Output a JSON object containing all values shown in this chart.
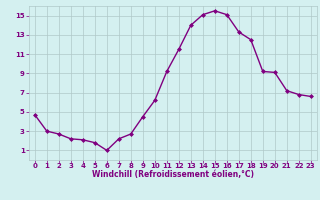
{
  "x": [
    0,
    1,
    2,
    3,
    4,
    5,
    6,
    7,
    8,
    9,
    10,
    11,
    12,
    13,
    14,
    15,
    16,
    17,
    18,
    19,
    20,
    21,
    22,
    23
  ],
  "y": [
    4.7,
    3.0,
    2.7,
    2.2,
    2.1,
    1.8,
    1.0,
    2.2,
    2.7,
    4.5,
    6.2,
    9.2,
    11.5,
    14.0,
    15.1,
    15.5,
    15.1,
    13.3,
    12.5,
    9.2,
    9.1,
    7.2,
    6.8,
    6.6
  ],
  "line_color": "#800080",
  "marker": "D",
  "marker_size": 2.0,
  "bg_color": "#d4f0f0",
  "grid_color": "#b0c8c8",
  "xlabel": "Windchill (Refroidissement éolien,°C)",
  "ylabel": "",
  "xlim": [
    -0.5,
    23.5
  ],
  "ylim": [
    0,
    16
  ],
  "yticks": [
    1,
    3,
    5,
    7,
    9,
    11,
    13,
    15
  ],
  "xticks": [
    0,
    1,
    2,
    3,
    4,
    5,
    6,
    7,
    8,
    9,
    10,
    11,
    12,
    13,
    14,
    15,
    16,
    17,
    18,
    19,
    20,
    21,
    22,
    23
  ],
  "tick_color": "#800080",
  "label_color": "#800080",
  "linewidth": 1.0,
  "tick_fontsize": 5,
  "xlabel_fontsize": 5.5
}
